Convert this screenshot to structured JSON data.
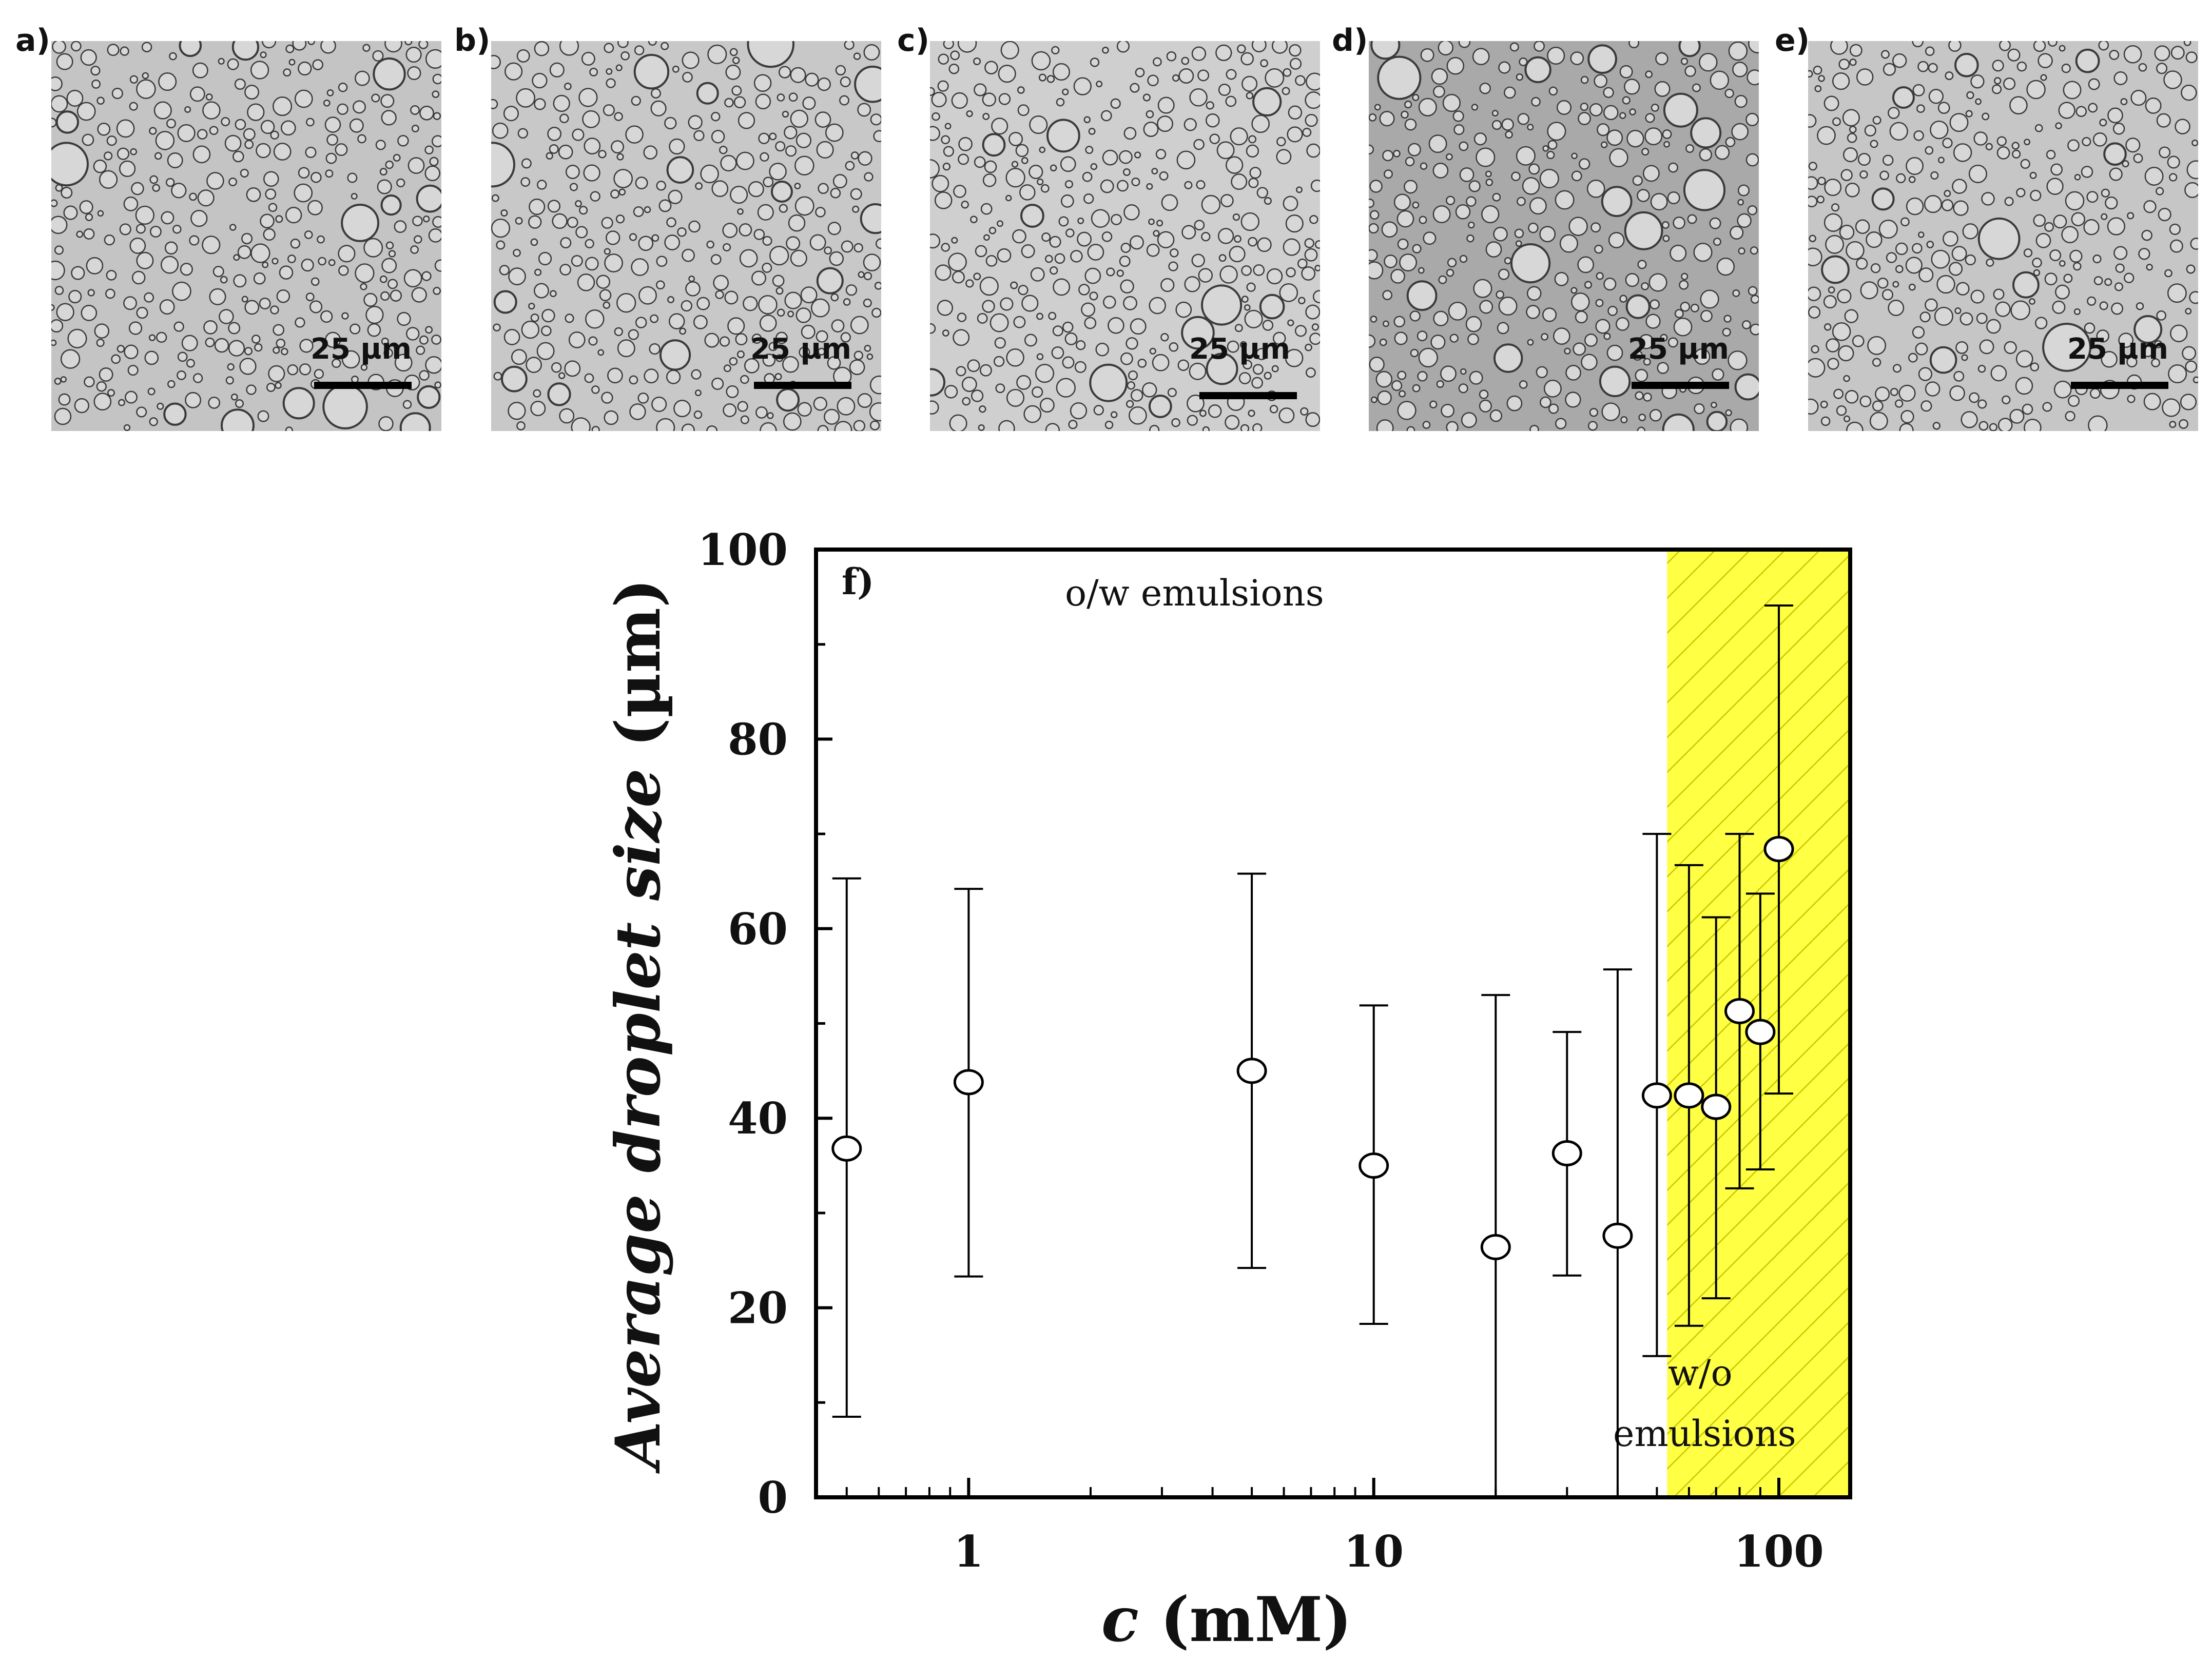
{
  "micrographs": [
    {
      "label": "a)",
      "scale_bar": "25 µm",
      "shade": "#c4c4c4",
      "seed": 11
    },
    {
      "label": "b)",
      "scale_bar": "25 µm",
      "shade": "#c8c8c8",
      "seed": 23
    },
    {
      "label": "c)",
      "scale_bar": "25 µm",
      "shade": "#cfcfcf",
      "seed": 37
    },
    {
      "label": "d)",
      "scale_bar": "25 µm",
      "shade": "#a9a9a9",
      "seed": 51
    },
    {
      "label": "e)",
      "scale_bar": "25 µm",
      "shade": "#c6c6c6",
      "seed": 67
    }
  ],
  "chart_data": {
    "type": "scatter",
    "panel_label": "f)",
    "xlabel_var": "c",
    "xlabel_unit": " (mM)",
    "ylabel_main": "Average droplet ",
    "ylabel_italic": "size",
    "ylabel_unit": " (µm)",
    "xscale": "log",
    "xlim": [
      0.42,
      150
    ],
    "ylim": [
      0,
      100
    ],
    "xticks": [
      1,
      10,
      100
    ],
    "xtick_labels": [
      "1",
      "10",
      "100"
    ],
    "yticks": [
      0,
      20,
      40,
      60,
      80,
      100
    ],
    "ytick_labels": [
      "0",
      "20",
      "40",
      "60",
      "80",
      "100"
    ],
    "points": [
      {
        "x": 0.5,
        "y": 36.8,
        "lo": 8.5,
        "hi": 65.3
      },
      {
        "x": 1,
        "y": 43.8,
        "lo": 23.3,
        "hi": 64.2
      },
      {
        "x": 5,
        "y": 45.0,
        "lo": 24.2,
        "hi": 65.8
      },
      {
        "x": 10,
        "y": 35.0,
        "lo": 18.3,
        "hi": 51.9
      },
      {
        "x": 20,
        "y": 26.4,
        "lo": 0,
        "hi": 53.0
      },
      {
        "x": 30,
        "y": 36.3,
        "lo": 23.4,
        "hi": 49.1
      },
      {
        "x": 40,
        "y": 27.6,
        "lo": 0,
        "hi": 55.7
      },
      {
        "x": 50,
        "y": 42.4,
        "lo": 14.9,
        "hi": 70.0
      },
      {
        "x": 60,
        "y": 42.4,
        "lo": 18.1,
        "hi": 66.7
      },
      {
        "x": 70,
        "y": 41.2,
        "lo": 21.0,
        "hi": 61.2
      },
      {
        "x": 80,
        "y": 51.3,
        "lo": 32.6,
        "hi": 70.0
      },
      {
        "x": 90,
        "y": 49.1,
        "lo": 34.6,
        "hi": 63.7
      },
      {
        "x": 100,
        "y": 68.4,
        "lo": 42.6,
        "hi": 94.1
      }
    ],
    "shaded_region": {
      "x_from": 53,
      "x_to": 150,
      "fill": "#ffff44",
      "hatch": "#c8c800"
    },
    "annotations": {
      "ow": "o/w emulsions",
      "wo_line1": "w/o",
      "wo_line2": "emulsions"
    }
  }
}
